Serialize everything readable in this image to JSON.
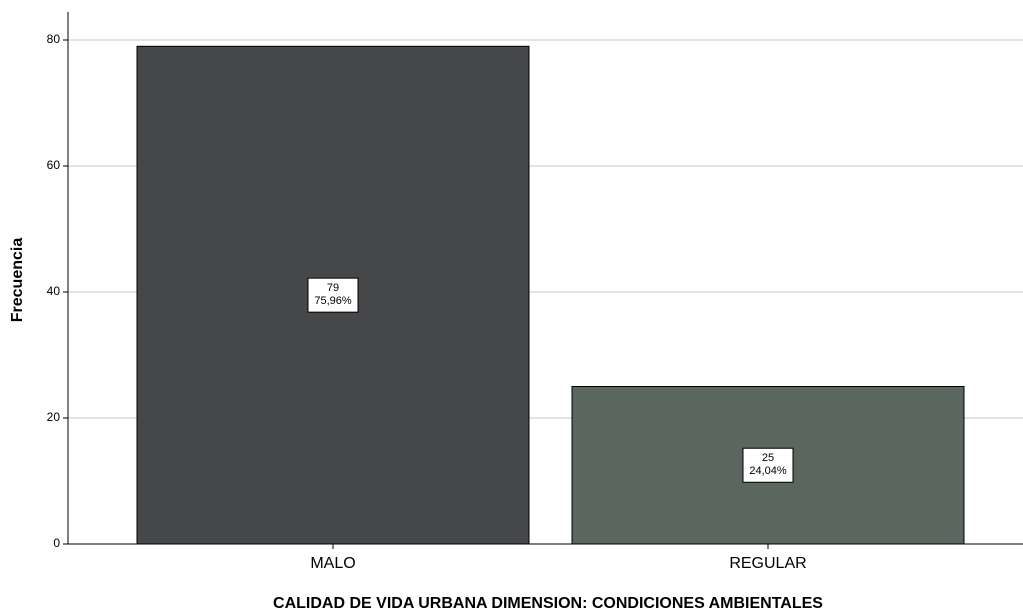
{
  "chart_data": {
    "type": "bar",
    "x_label": "CALIDAD DE VIDA URBANA DIMENSION: CONDICIONES AMBIENTALES",
    "y_label": "Frecuencia",
    "categories": [
      "MALO",
      "REGULAR"
    ],
    "values": [
      79,
      25
    ],
    "percent_labels": [
      "75,96%",
      "24,04%"
    ],
    "colors": [
      "#454749",
      "#5a665e"
    ],
    "ylim": [
      0,
      80
    ],
    "yticks": [
      0,
      20,
      40,
      60,
      80
    ],
    "grid": true
  }
}
